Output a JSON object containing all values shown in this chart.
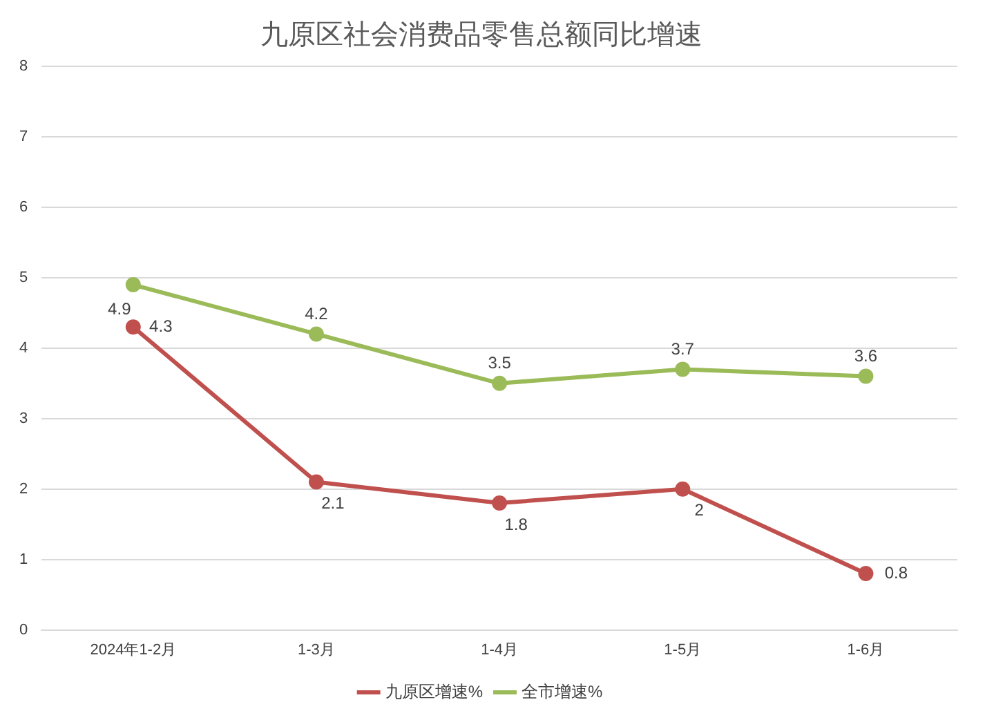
{
  "chart_data": {
    "type": "line",
    "title": "九原区社会消费品零售总额同比增速",
    "categories": [
      "2024年1-2月",
      "1-3月",
      "1-4月",
      "1-5月",
      "1-6月"
    ],
    "series": [
      {
        "name": "九原区增速%",
        "color": "#c0504d",
        "values": [
          4.3,
          2.1,
          1.8,
          2,
          0.8
        ]
      },
      {
        "name": "全市增速%",
        "color": "#9bbb59",
        "values": [
          4.9,
          4.2,
          3.5,
          3.7,
          3.6
        ]
      }
    ],
    "ylim": [
      0,
      8
    ],
    "yticks": [
      0,
      1,
      2,
      3,
      4,
      5,
      6,
      7,
      8
    ],
    "grid": "y",
    "legend": "bottom",
    "marker": "circle",
    "line_style": "solid",
    "data_labels": true
  }
}
